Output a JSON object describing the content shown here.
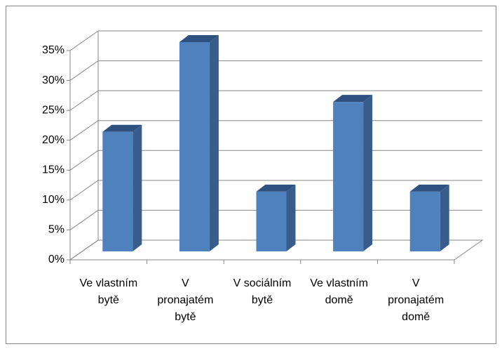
{
  "chart_data": {
    "type": "bar3d",
    "categories": [
      "Ve vlastním bytě",
      "V pronajatém bytě",
      "V sociálním bytě",
      "Ve vlastním domě",
      "V pronajatém domě"
    ],
    "values": [
      20,
      35,
      10,
      25,
      10
    ],
    "color": "#4f81bd",
    "ylim": [
      0,
      35
    ],
    "yticks": [
      {
        "value": 0,
        "label": "0%"
      },
      {
        "value": 5,
        "label": "5%"
      },
      {
        "value": 10,
        "label": "10%"
      },
      {
        "value": 15,
        "label": "15%"
      },
      {
        "value": 20,
        "label": "20%"
      },
      {
        "value": 25,
        "label": "25%"
      },
      {
        "value": 30,
        "label": "30%"
      },
      {
        "value": 35,
        "label": "35%"
      }
    ],
    "grid": true
  }
}
